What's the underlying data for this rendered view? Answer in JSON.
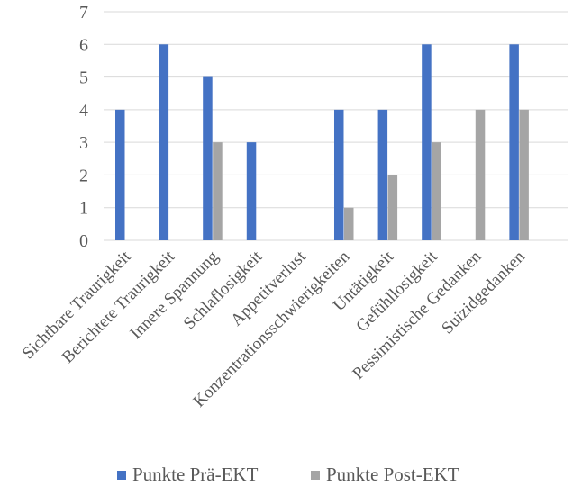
{
  "chart_data": {
    "type": "bar",
    "title": "",
    "xlabel": "",
    "ylabel": "",
    "ylim": [
      0,
      7
    ],
    "yticks": [
      0,
      1,
      2,
      3,
      4,
      5,
      6,
      7
    ],
    "grid": true,
    "legend_position": "bottom",
    "categories": [
      "Sichtbare Traurigkeit",
      "Berichtete Traurigkeit",
      "Innere Spannung",
      "Schlaflosigkeit",
      "Appetitverlust",
      "Konzentrationsschwierigkeiten",
      "Untätigkeit",
      "Gefühllosigkeit",
      "Pessimistische Gedanken",
      "Suizidgedanken"
    ],
    "series": [
      {
        "name": "Punkte Prä-EKT",
        "color": "#4472c4",
        "values": [
          4,
          6,
          5,
          3,
          0,
          4,
          4,
          6,
          0,
          6
        ]
      },
      {
        "name": "Punkte Post-EKT",
        "color": "#a5a5a5",
        "values": [
          0,
          0,
          3,
          0,
          0,
          1,
          2,
          3,
          4,
          4
        ]
      }
    ]
  }
}
